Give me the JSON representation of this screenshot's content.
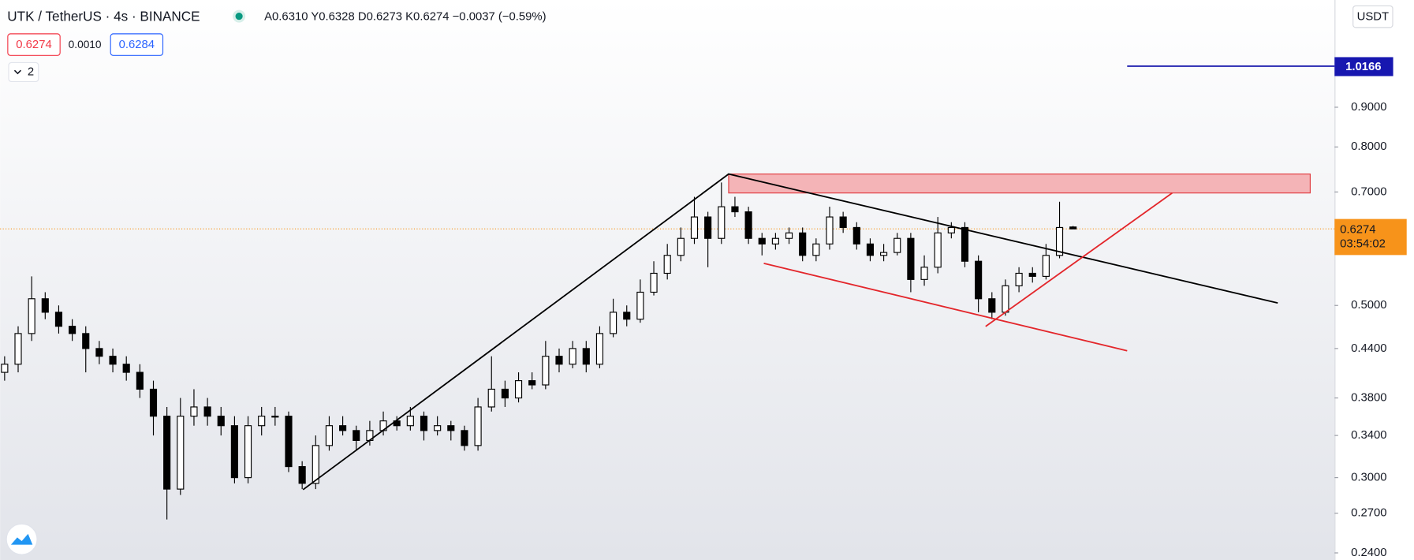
{
  "header": {
    "symbol": "UTK / TetherUS · 4s · BINANCE",
    "ohlc": "A0.6310 Y0.6328 D0.6273 K0.6274 −0.0037 (−0.59%)",
    "bid": "0.6274",
    "spread": "0.0010",
    "ask": "0.6284",
    "indicators_count": "2",
    "currency": "USDT",
    "countdown": "03:54:02"
  },
  "chart_data": {
    "type": "candlestick",
    "log_scale": true,
    "up_color": "#ffffff",
    "down_color": "#000000",
    "wick_color": "#000000",
    "ylim": [
      0.235,
      1.237
    ],
    "yticks": [
      {
        "value": 0.24,
        "label": "0.2400"
      },
      {
        "value": 0.27,
        "label": "0.2700"
      },
      {
        "value": 0.3,
        "label": "0.3000"
      },
      {
        "value": 0.34,
        "label": "0.3400"
      },
      {
        "value": 0.38,
        "label": "0.3800"
      },
      {
        "value": 0.44,
        "label": "0.4400"
      },
      {
        "value": 0.5,
        "label": "0.5000"
      },
      {
        "value": 0.7,
        "label": "0.7000"
      },
      {
        "value": 0.8,
        "label": "0.8000"
      },
      {
        "value": 0.9,
        "label": "0.9000"
      }
    ],
    "last_price": {
      "value": 0.6274,
      "label": "0.6274"
    },
    "alert_line": {
      "value": 1.0166,
      "label": "1.0166"
    },
    "open": [
      0.41,
      0.42,
      0.46,
      0.51,
      0.49,
      0.47,
      0.46,
      0.44,
      0.43,
      0.42,
      0.41,
      0.39,
      0.36,
      0.29,
      0.36,
      0.37,
      0.36,
      0.35,
      0.3,
      0.35,
      0.36,
      0.36,
      0.31,
      0.295,
      0.33,
      0.35,
      0.345,
      0.335,
      0.345,
      0.355,
      0.35,
      0.36,
      0.345,
      0.35,
      0.345,
      0.33,
      0.37,
      0.39,
      0.38,
      0.4,
      0.395,
      0.43,
      0.42,
      0.44,
      0.42,
      0.46,
      0.49,
      0.48,
      0.52,
      0.55,
      0.58,
      0.61,
      0.65,
      0.61,
      0.67,
      0.66,
      0.61,
      0.6,
      0.61,
      0.62,
      0.58,
      0.6,
      0.65,
      0.63,
      0.6,
      0.58,
      0.585,
      0.61,
      0.54,
      0.56,
      0.62,
      0.63,
      0.57,
      0.51,
      0.49,
      0.53,
      0.55,
      0.545,
      0.58,
      0.631
    ],
    "high": [
      0.43,
      0.47,
      0.545,
      0.52,
      0.5,
      0.48,
      0.47,
      0.45,
      0.44,
      0.43,
      0.42,
      0.4,
      0.37,
      0.38,
      0.39,
      0.38,
      0.37,
      0.36,
      0.36,
      0.37,
      0.37,
      0.365,
      0.315,
      0.34,
      0.36,
      0.36,
      0.35,
      0.355,
      0.365,
      0.36,
      0.37,
      0.365,
      0.36,
      0.355,
      0.35,
      0.38,
      0.43,
      0.4,
      0.41,
      0.41,
      0.45,
      0.44,
      0.45,
      0.45,
      0.47,
      0.51,
      0.5,
      0.54,
      0.57,
      0.6,
      0.63,
      0.69,
      0.66,
      0.72,
      0.69,
      0.67,
      0.62,
      0.62,
      0.63,
      0.63,
      0.61,
      0.67,
      0.66,
      0.64,
      0.61,
      0.6,
      0.62,
      0.62,
      0.58,
      0.65,
      0.64,
      0.64,
      0.58,
      0.52,
      0.54,
      0.56,
      0.56,
      0.6,
      0.68,
      0.6328
    ],
    "low": [
      0.4,
      0.41,
      0.45,
      0.48,
      0.46,
      0.45,
      0.41,
      0.42,
      0.41,
      0.4,
      0.38,
      0.34,
      0.265,
      0.285,
      0.35,
      0.35,
      0.34,
      0.295,
      0.295,
      0.34,
      0.35,
      0.305,
      0.29,
      0.29,
      0.325,
      0.34,
      0.325,
      0.33,
      0.34,
      0.345,
      0.345,
      0.335,
      0.34,
      0.335,
      0.325,
      0.325,
      0.365,
      0.37,
      0.375,
      0.39,
      0.39,
      0.41,
      0.415,
      0.41,
      0.415,
      0.455,
      0.47,
      0.475,
      0.515,
      0.54,
      0.57,
      0.6,
      0.56,
      0.6,
      0.65,
      0.6,
      0.58,
      0.59,
      0.6,
      0.57,
      0.57,
      0.59,
      0.62,
      0.59,
      0.57,
      0.57,
      0.58,
      0.52,
      0.53,
      0.55,
      0.61,
      0.56,
      0.49,
      0.48,
      0.485,
      0.52,
      0.535,
      0.54,
      0.575,
      0.6273
    ],
    "close": [
      0.42,
      0.46,
      0.51,
      0.49,
      0.47,
      0.46,
      0.44,
      0.43,
      0.42,
      0.41,
      0.39,
      0.36,
      0.29,
      0.36,
      0.37,
      0.36,
      0.35,
      0.3,
      0.35,
      0.36,
      0.36,
      0.31,
      0.295,
      0.33,
      0.35,
      0.345,
      0.335,
      0.345,
      0.355,
      0.35,
      0.36,
      0.345,
      0.35,
      0.345,
      0.33,
      0.37,
      0.39,
      0.38,
      0.4,
      0.395,
      0.43,
      0.42,
      0.44,
      0.42,
      0.46,
      0.49,
      0.48,
      0.52,
      0.55,
      0.58,
      0.61,
      0.65,
      0.61,
      0.67,
      0.66,
      0.61,
      0.6,
      0.61,
      0.62,
      0.58,
      0.6,
      0.65,
      0.63,
      0.6,
      0.58,
      0.585,
      0.61,
      0.54,
      0.56,
      0.62,
      0.63,
      0.57,
      0.51,
      0.49,
      0.53,
      0.55,
      0.545,
      0.58,
      0.63,
      0.6274
    ]
  }
}
